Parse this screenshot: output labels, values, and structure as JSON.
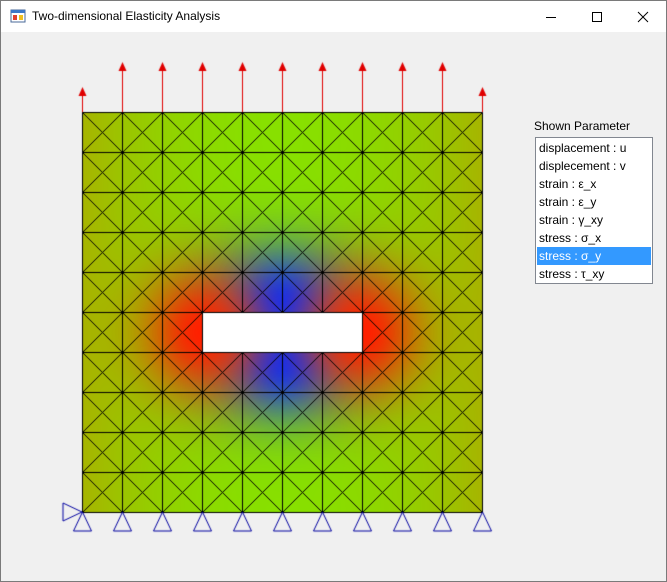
{
  "window": {
    "title": "Two-dimensional Elasticity Analysis"
  },
  "panel": {
    "label": "Shown Parameter",
    "items": [
      "displacement : u",
      "displecement : v",
      "strain : ε_x",
      "strain : ε_y",
      "strain : γ_xy",
      "stress : σ_x",
      "stress : σ_y",
      "stress : τ_xy"
    ],
    "selected_index": 6
  },
  "mesh": {
    "rows": 10,
    "cols": 10,
    "hole": {
      "col_start": 3,
      "col_end": 7,
      "row_start": 5,
      "row_end": 6
    },
    "load_arrow_count": 11,
    "support_count": 11,
    "colors": {
      "load_arrow": "#e00000",
      "support": "#0000a0",
      "mesh_line": "#000000",
      "base": "#88e000",
      "low": "#0033ff",
      "high": "#ff2000",
      "edge": "#aab000"
    }
  }
}
